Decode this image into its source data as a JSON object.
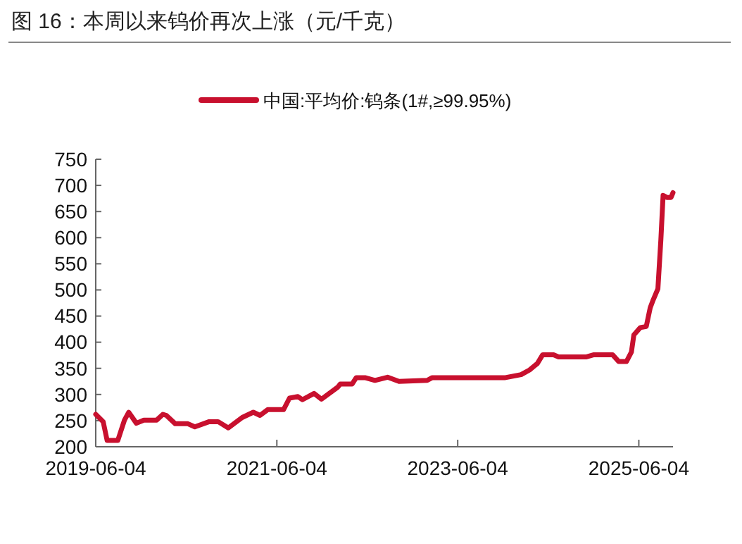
{
  "chart_data": {
    "type": "line",
    "title": "图 16：本周以来钨价再次上涨（元/千克）",
    "x": [
      "2019-06-04",
      "2019-07-04",
      "2019-07-20",
      "2019-09-01",
      "2019-09-28",
      "2019-10-15",
      "2019-11-15",
      "2019-12-15",
      "2020-02-05",
      "2020-03-01",
      "2020-03-15",
      "2020-04-20",
      "2020-06-10",
      "2020-07-08",
      "2020-09-04",
      "2020-10-10",
      "2020-11-20",
      "2021-01-15",
      "2021-03-01",
      "2021-03-28",
      "2021-04-28",
      "2021-07-01",
      "2021-07-25",
      "2021-08-28",
      "2021-09-15",
      "2021-11-01",
      "2021-12-01",
      "2022-02-05",
      "2022-02-15",
      "2022-04-04",
      "2022-04-20",
      "2022-05-28",
      "2022-07-05",
      "2022-08-25",
      "2022-10-10",
      "2023-02-01",
      "2023-02-20",
      "2023-06-04",
      "2023-12-10",
      "2024-02-15",
      "2024-03-20",
      "2024-04-20",
      "2024-05-12",
      "2024-06-25",
      "2024-07-15",
      "2024-11-05",
      "2024-12-05",
      "2025-02-18",
      "2025-03-15",
      "2025-04-15",
      "2025-05-05",
      "2025-05-15",
      "2025-06-10",
      "2025-07-04",
      "2025-07-20",
      "2025-08-01",
      "2025-08-20",
      "2025-09-01",
      "2025-09-10",
      "2025-09-25",
      "2025-10-12",
      "2025-10-20"
    ],
    "series": [
      {
        "name": "中国:平均价:钨条(1#,≥99.95%)",
        "color": "#c8102e",
        "values": [
          262,
          248,
          212,
          212,
          251,
          266,
          245,
          251,
          251,
          262,
          260,
          244,
          244,
          238,
          248,
          248,
          236,
          256,
          266,
          260,
          271,
          271,
          293,
          296,
          290,
          302,
          291,
          314,
          320,
          320,
          332,
          332,
          327,
          333,
          325,
          327,
          332,
          332,
          332,
          338,
          347,
          359,
          376,
          376,
          372,
          372,
          376,
          376,
          363,
          363,
          381,
          414,
          428,
          430,
          466,
          481,
          502,
          596,
          681,
          677,
          677,
          686
        ]
      }
    ],
    "xlim": [
      "2019-06-04",
      "2025-10-20"
    ],
    "xticks": [
      {
        "value": "2019-06-04",
        "label": "2019-06-04"
      },
      {
        "value": "2021-06-04",
        "label": "2021-06-04"
      },
      {
        "value": "2023-06-04",
        "label": "2023-06-04"
      },
      {
        "value": "2025-06-04",
        "label": "2025-06-04"
      }
    ],
    "ylim": [
      200,
      750
    ],
    "yticks": [
      200,
      250,
      300,
      350,
      400,
      450,
      500,
      550,
      600,
      650,
      700,
      750
    ],
    "legend": "top",
    "grid": false,
    "line_style": "solid",
    "marker": "none"
  }
}
